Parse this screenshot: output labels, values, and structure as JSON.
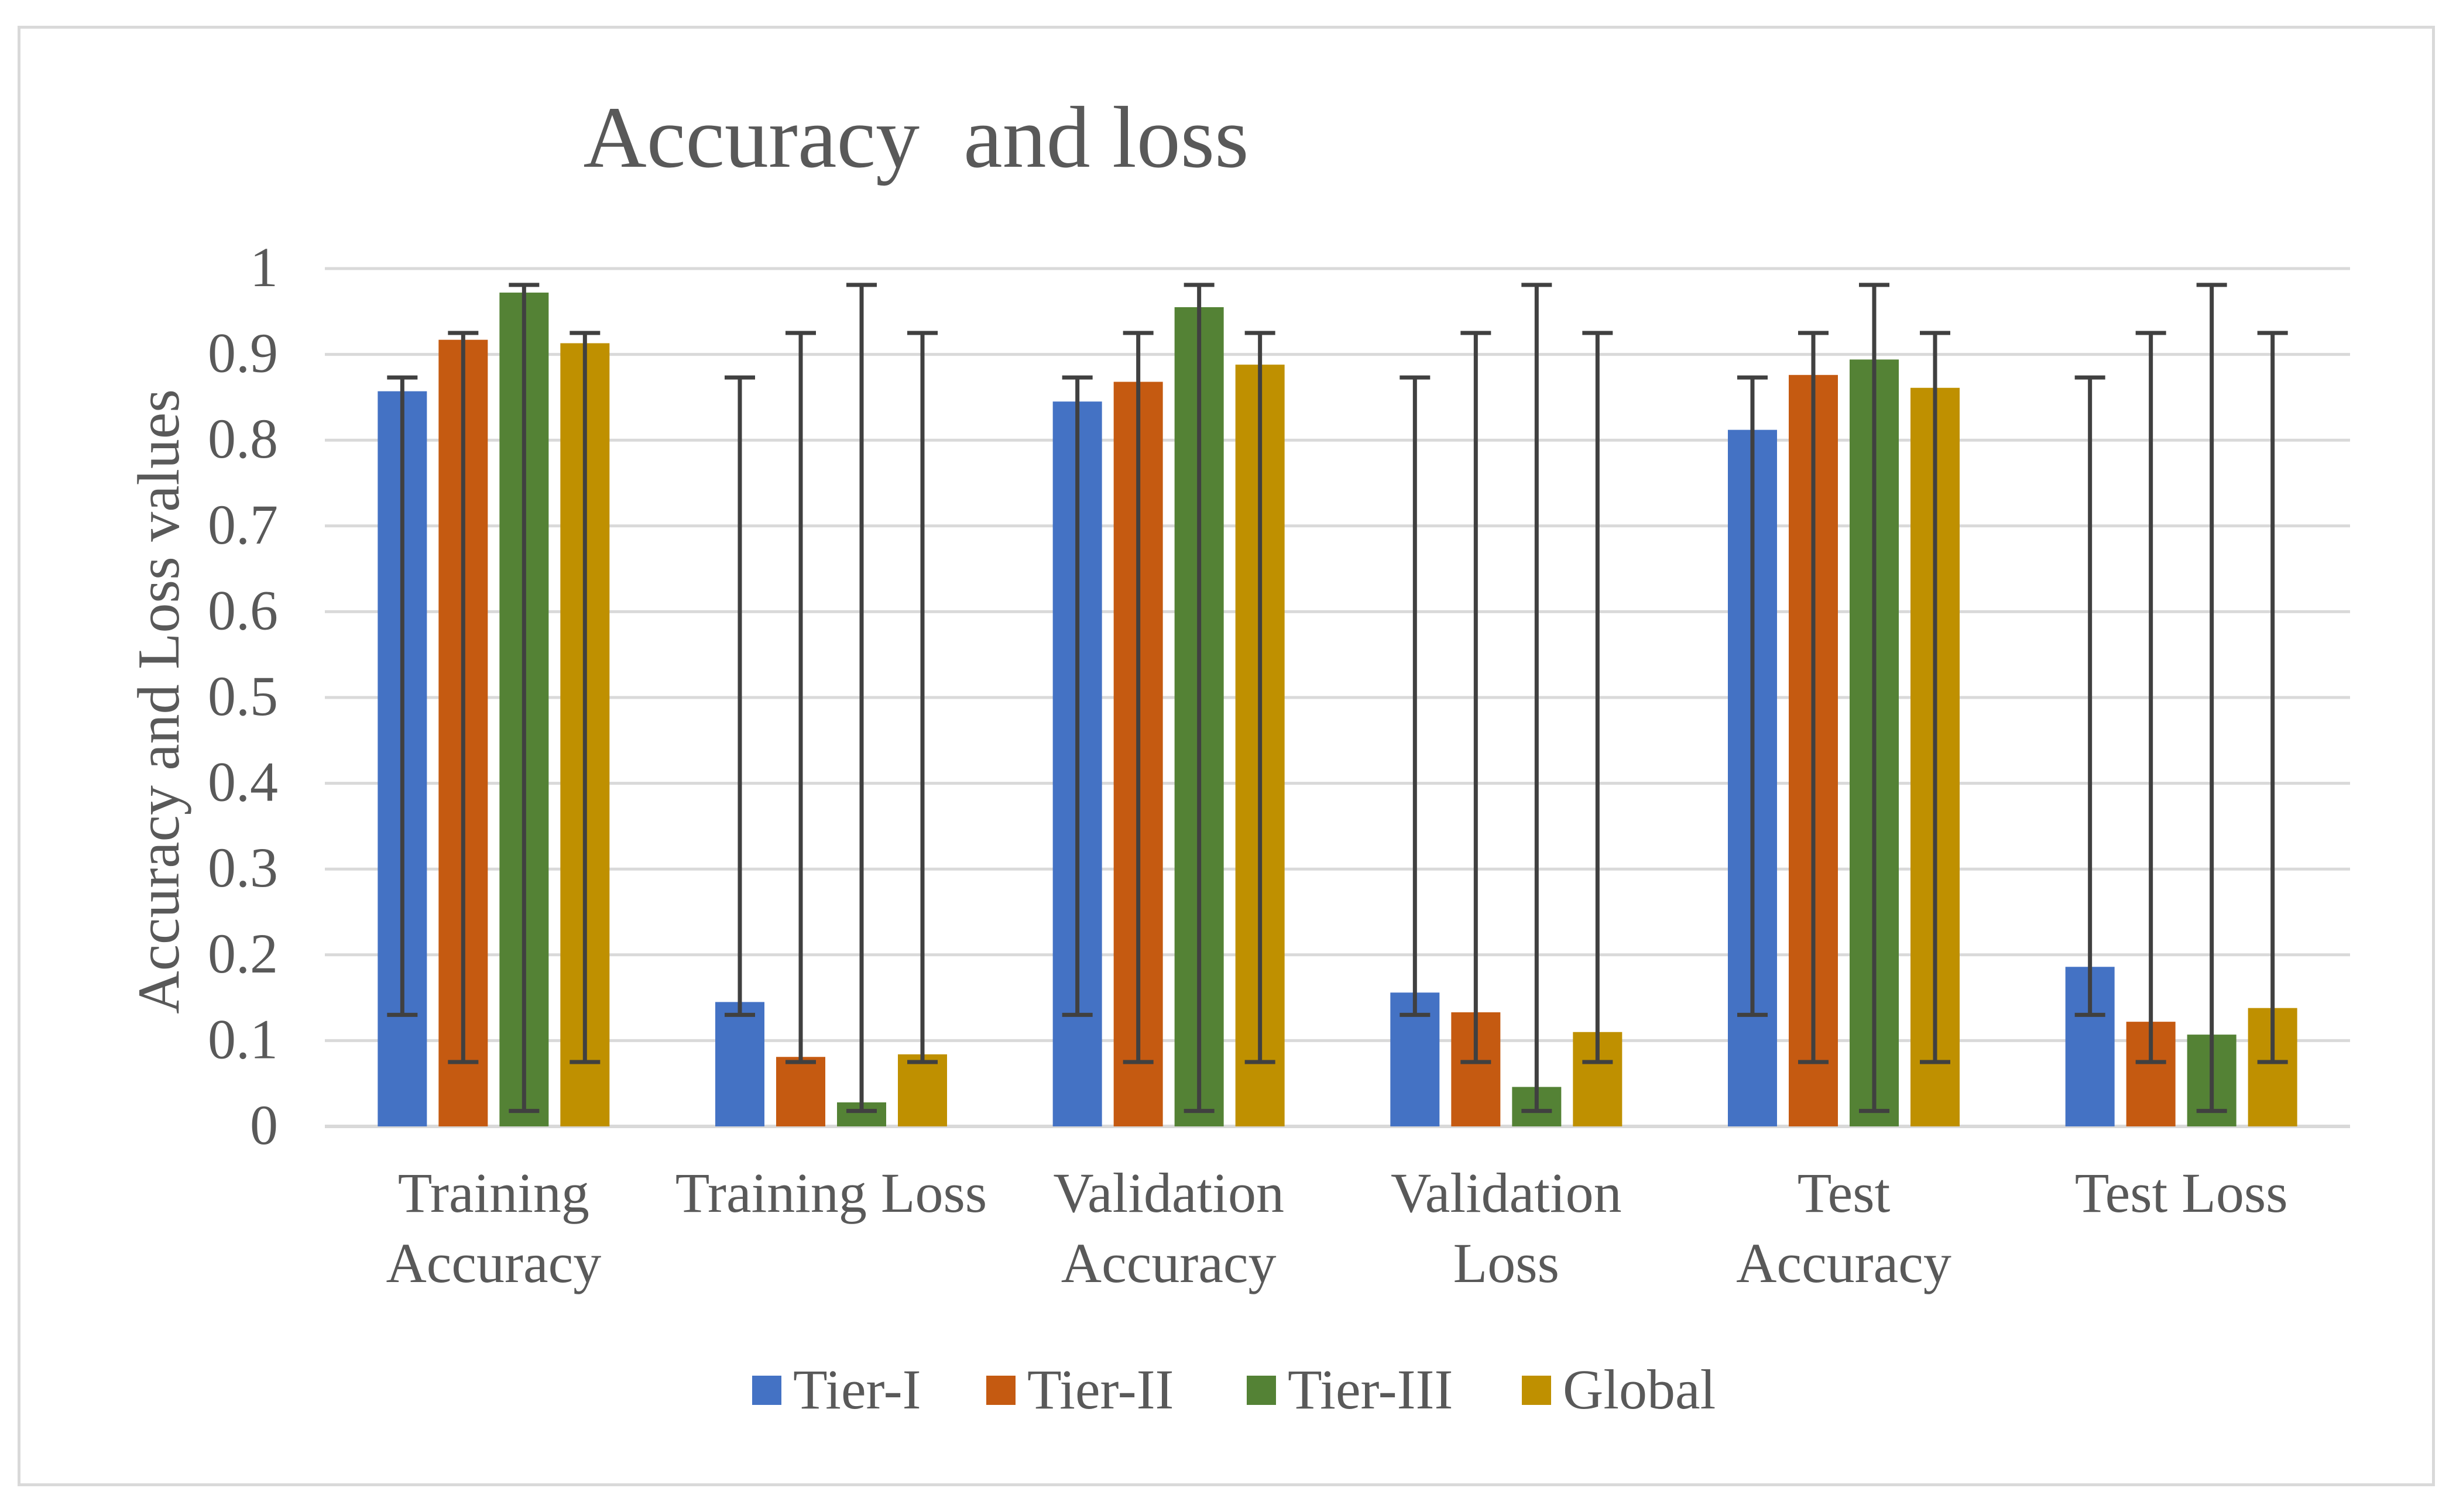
{
  "chart_data": {
    "type": "bar",
    "title": "Accuracy  and loss",
    "xlabel": "",
    "ylabel": "Accuracy and Loss values",
    "ylim": [
      0,
      1
    ],
    "yticks": [
      "0",
      "0.1",
      "0.2",
      "0.3",
      "0.4",
      "0.5",
      "0.6",
      "0.7",
      "0.8",
      "0.9",
      "1"
    ],
    "grid": true,
    "legend_position": "bottom",
    "categories": [
      [
        "Training",
        "Accuracy"
      ],
      [
        "Training Loss"
      ],
      [
        "Validation",
        "Accuracy"
      ],
      [
        "Validation",
        "Loss"
      ],
      [
        "Test",
        "Accuracy"
      ],
      [
        "Test Loss"
      ]
    ],
    "series": [
      {
        "name": "Tier-I",
        "color": "#4472C4",
        "values": [
          0.857,
          0.145,
          0.845,
          0.156,
          0.812,
          0.186
        ],
        "error_range": [
          0.13,
          0.873
        ]
      },
      {
        "name": "Tier-II",
        "color": "#C55A11",
        "values": [
          0.917,
          0.081,
          0.868,
          0.133,
          0.876,
          0.122
        ],
        "error_range": [
          0.075,
          0.925
        ]
      },
      {
        "name": "Tier-III",
        "color": "#548235",
        "values": [
          0.972,
          0.028,
          0.955,
          0.046,
          0.894,
          0.107
        ],
        "error_range": [
          0.018,
          0.981
        ]
      },
      {
        "name": "Global",
        "color": "#BF9000",
        "values": [
          0.913,
          0.084,
          0.888,
          0.11,
          0.861,
          0.138
        ],
        "error_range": [
          0.075,
          0.925
        ]
      }
    ]
  }
}
